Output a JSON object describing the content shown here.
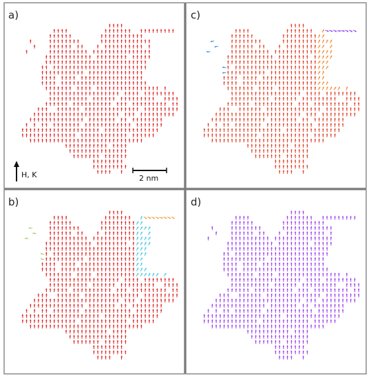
{
  "panels": [
    {
      "label": "a)",
      "pattern": "uniform",
      "colors": [
        "#e02020"
      ]
    },
    {
      "label": "c)",
      "pattern": "regions",
      "colors": [
        "#e03a20",
        "#f08a30",
        "#3a90e0",
        "#8a40f0"
      ]
    },
    {
      "label": "b)",
      "pattern": "regions",
      "colors": [
        "#e02020",
        "#40c8e0",
        "#a0d060",
        "#f0a040"
      ]
    },
    {
      "label": "d)",
      "pattern": "uniform",
      "colors": [
        "#9a3cf0"
      ]
    }
  ],
  "annotations": {
    "field_label": "H, K",
    "scale_label": "2 nm"
  },
  "colors": {
    "frame": "#8a8a8a",
    "divider": "#7a7a7a",
    "background": "#ffffff"
  }
}
